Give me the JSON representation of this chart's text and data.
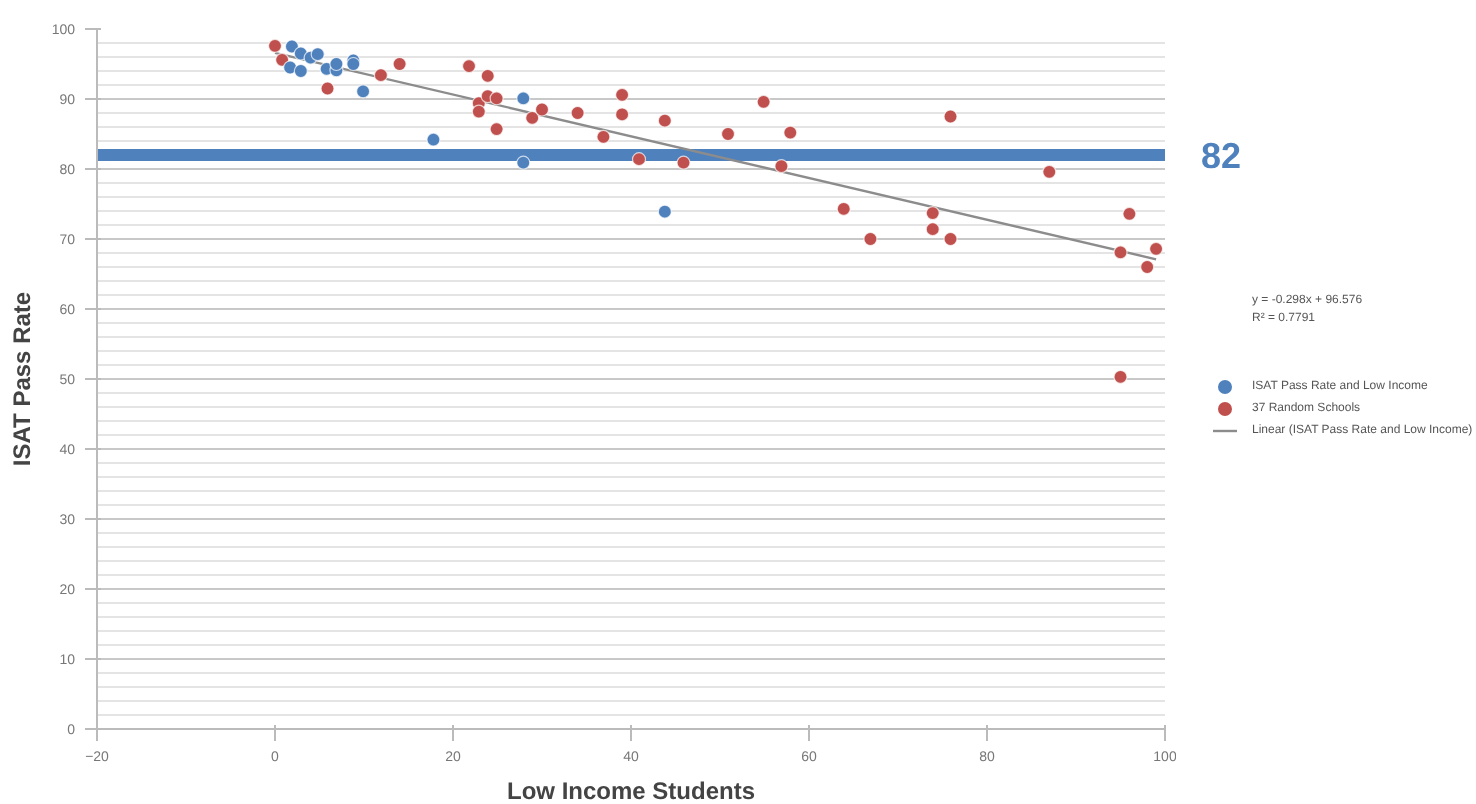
{
  "chart_data": {
    "type": "scatter",
    "xlabel": "Low Income Students",
    "ylabel": "ISAT Pass Rate",
    "xlim": [
      -20,
      100
    ],
    "xticks": [
      -20,
      0,
      20,
      40,
      60,
      80,
      100
    ],
    "ylim": [
      0,
      100
    ],
    "yticks": [
      0,
      10,
      20,
      30,
      40,
      50,
      60,
      70,
      80,
      90,
      100
    ],
    "grid": "y",
    "legend": "right",
    "marker": "circle",
    "annotations": [
      "y = -0.298x + 96.576",
      "R² = 0.7791"
    ],
    "ref_lines": [
      {
        "axis": "y",
        "value": 82,
        "label": "82",
        "color": "#4f81bd"
      }
    ],
    "series": [
      {
        "name": "ISAT Pass Rate and Low Income",
        "color": "#4f81bd",
        "x": [
          1.9,
          2.9,
          4.0,
          4.8,
          1.7,
          2.9,
          5.8,
          6.9,
          6.9,
          8.8,
          8.8,
          9.9,
          17.8,
          27.9,
          27.9,
          43.8
        ],
        "values": [
          97.5,
          96.5,
          95.9,
          96.4,
          94.5,
          94.0,
          94.3,
          94.1,
          95.0,
          95.5,
          95.0,
          91.1,
          84.2,
          90.1,
          80.9,
          73.9
        ]
      },
      {
        "name": "37 Random Schools",
        "color": "#c0504d",
        "x": [
          0,
          0.8,
          5.9,
          11.9,
          14.0,
          21.8,
          23.9,
          22.9,
          22.9,
          23.9,
          24.9,
          24.9,
          28.9,
          30.0,
          34.0,
          36.9,
          39.0,
          39.0,
          40.9,
          43.8,
          45.9,
          50.9,
          54.9,
          57.9,
          56.9,
          63.9,
          66.9,
          73.9,
          73.9,
          75.9,
          75.9,
          87.0,
          96.0,
          95.0,
          98.0,
          99.0,
          95.0
        ],
        "values": [
          97.6,
          95.6,
          91.5,
          93.4,
          95.0,
          94.7,
          93.3,
          89.4,
          88.2,
          90.4,
          90.1,
          85.7,
          87.3,
          88.5,
          88.0,
          84.6,
          90.6,
          87.8,
          81.4,
          86.9,
          80.9,
          85.0,
          89.6,
          85.2,
          80.4,
          74.3,
          70.0,
          73.7,
          71.4,
          70.0,
          87.5,
          79.6,
          73.6,
          68.1,
          66.0,
          68.6,
          50.3
        ]
      },
      {
        "name": "Linear (ISAT Pass Rate and Low Income)",
        "type": "line",
        "color": "#8c8c8c",
        "line_style": "solid",
        "marker": "none",
        "x": [
          0,
          99
        ],
        "values": [
          96.6,
          67.1
        ]
      }
    ]
  }
}
